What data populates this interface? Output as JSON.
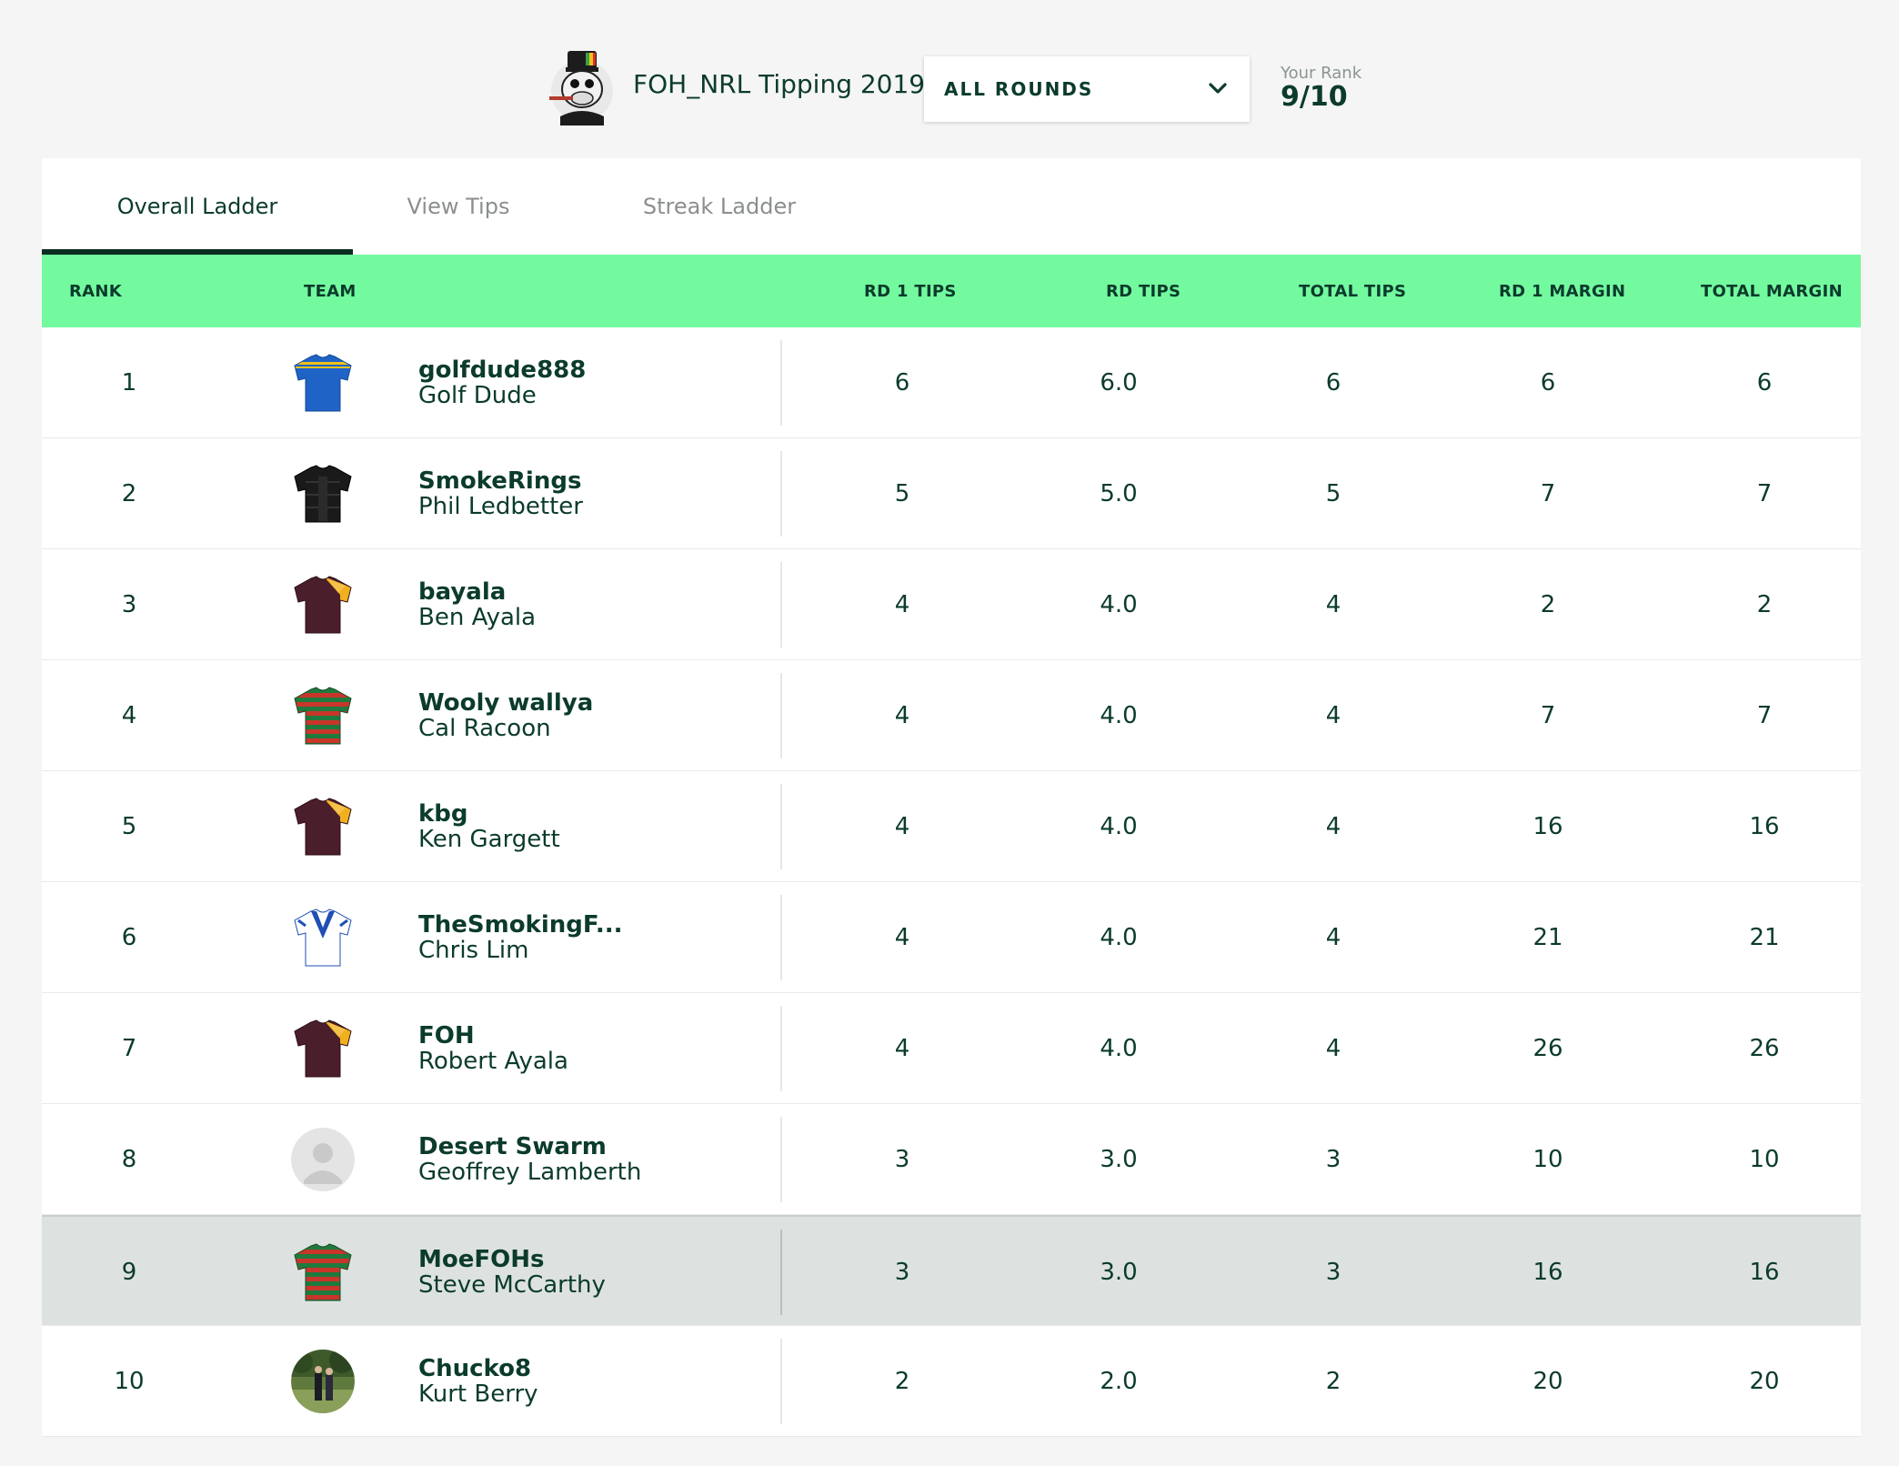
{
  "header": {
    "title": "FOH_NRL Tipping 2019",
    "round_select": "ALL ROUNDS",
    "rank_label": "Your Rank",
    "rank_value": "9/10"
  },
  "tabs": [
    {
      "label": "Overall Ladder",
      "active": true
    },
    {
      "label": "View Tips",
      "active": false
    },
    {
      "label": "Streak Ladder",
      "active": false
    }
  ],
  "columns": {
    "rank": "RANK",
    "team": "TEAM",
    "rd1_tips": "RD 1 TIPS",
    "rd_tips": "RD TIPS",
    "total_tips": "TOTAL TIPS",
    "rd1_margin": "RD 1 MARGIN",
    "total_margin": "TOTAL MARGIN"
  },
  "colors": {
    "header_band": "#73fa9f",
    "text": "#0b3b2c",
    "highlight_row": "#dde2e0"
  },
  "rows": [
    {
      "rank": "1",
      "icon": "eels-jersey-icon",
      "username": "golfdude888",
      "name": "Golf Dude",
      "rd1_tips": "6",
      "rd_tips": "6.0",
      "total_tips": "6",
      "rd1_margin": "6",
      "total_margin": "6"
    },
    {
      "rank": "2",
      "icon": "panthers-jersey-icon",
      "username": "SmokeRings",
      "name": "Phil Ledbetter",
      "rd1_tips": "5",
      "rd_tips": "5.0",
      "total_tips": "5",
      "rd1_margin": "7",
      "total_margin": "7"
    },
    {
      "rank": "3",
      "icon": "broncos-jersey-icon",
      "username": "bayala",
      "name": "Ben Ayala",
      "rd1_tips": "4",
      "rd_tips": "4.0",
      "total_tips": "4",
      "rd1_margin": "2",
      "total_margin": "2"
    },
    {
      "rank": "4",
      "icon": "rabbitohs-jersey-icon",
      "username": "Wooly wallya",
      "name": "Cal Racoon",
      "rd1_tips": "4",
      "rd_tips": "4.0",
      "total_tips": "4",
      "rd1_margin": "7",
      "total_margin": "7"
    },
    {
      "rank": "5",
      "icon": "broncos-jersey-icon",
      "username": "kbg",
      "name": "Ken Gargett",
      "rd1_tips": "4",
      "rd_tips": "4.0",
      "total_tips": "4",
      "rd1_margin": "16",
      "total_margin": "16"
    },
    {
      "rank": "6",
      "icon": "bulldogs-jersey-icon",
      "username": "TheSmokingF...",
      "name": "Chris Lim",
      "rd1_tips": "4",
      "rd_tips": "4.0",
      "total_tips": "4",
      "rd1_margin": "21",
      "total_margin": "21"
    },
    {
      "rank": "7",
      "icon": "broncos-jersey-icon",
      "username": "FOH",
      "name": "Robert Ayala",
      "rd1_tips": "4",
      "rd_tips": "4.0",
      "total_tips": "4",
      "rd1_margin": "26",
      "total_margin": "26"
    },
    {
      "rank": "8",
      "icon": "default-avatar-icon",
      "username": "Desert Swarm",
      "name": "Geoffrey Lamberth",
      "rd1_tips": "3",
      "rd_tips": "3.0",
      "total_tips": "3",
      "rd1_margin": "10",
      "total_margin": "10"
    },
    {
      "rank": "9",
      "icon": "rabbitohs-jersey-icon",
      "username": "MoeFOHs",
      "name": "Steve McCarthy",
      "rd1_tips": "3",
      "rd_tips": "3.0",
      "total_tips": "3",
      "rd1_margin": "16",
      "total_margin": "16",
      "current_user": true
    },
    {
      "rank": "10",
      "icon": "photo-avatar-icon",
      "username": "Chucko8",
      "name": "Kurt Berry",
      "rd1_tips": "2",
      "rd_tips": "2.0",
      "total_tips": "2",
      "rd1_margin": "20",
      "total_margin": "20"
    }
  ]
}
